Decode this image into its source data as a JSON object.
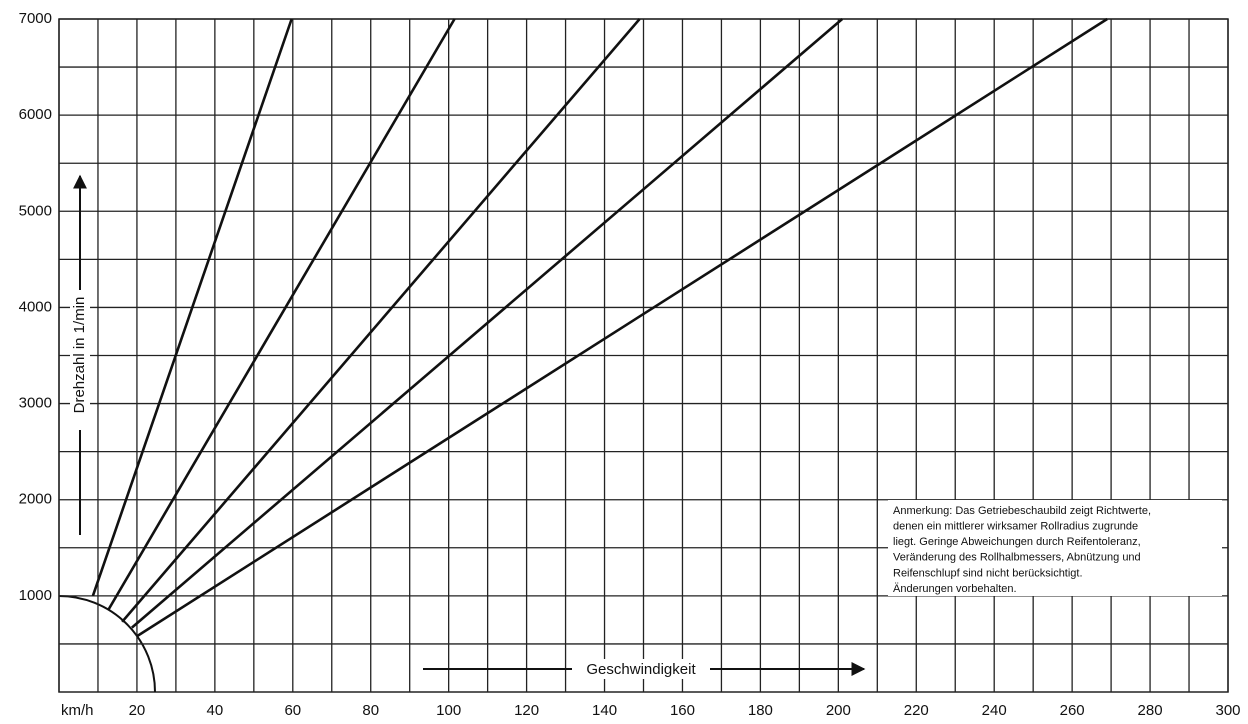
{
  "chart_data": {
    "type": "line",
    "x_label": "Geschwindigkeit",
    "y_label": "Drehzahl in 1/min",
    "xlim": [
      0,
      300
    ],
    "ylim": [
      0,
      7000
    ],
    "xticks": [
      {
        "value": 0,
        "label": "km/h"
      },
      20,
      40,
      60,
      80,
      100,
      120,
      140,
      160,
      180,
      200,
      220,
      240,
      260,
      280,
      300
    ],
    "xgrid": [
      10,
      30,
      50,
      70,
      90,
      110,
      130,
      150,
      170,
      190,
      210,
      230,
      250,
      270,
      290
    ],
    "yticks": [
      1000,
      2000,
      3000,
      4000,
      5000,
      6000,
      7000
    ],
    "ygrid": [
      500,
      1500,
      2500,
      3500,
      4500,
      5500,
      6500
    ],
    "grid": true,
    "series": [
      {
        "color": "#111111",
        "x": [
          8.7,
          59.7
        ],
        "values": [
          1000,
          7000
        ]
      },
      {
        "color": "#111111",
        "x": [
          12.6,
          101.5
        ],
        "values": [
          850,
          7000
        ]
      },
      {
        "color": "#111111",
        "x": [
          16.2,
          149
        ],
        "values": [
          730,
          7000
        ]
      },
      {
        "color": "#111111",
        "x": [
          18.7,
          201
        ],
        "values": [
          670,
          7000
        ]
      },
      {
        "color": "#111111",
        "x": [
          20,
          269
        ],
        "values": [
          580,
          7000
        ]
      }
    ],
    "annotation": [
      "Anmerkung: Das Getriebeschaubild zeigt Richtwerte,",
      "denen ein mittlerer wirksamer Rollradius zugrunde",
      "liegt. Geringe Abweichungen durch Reifentoleranz,",
      "Veränderung des Rollhalbmessers, Abnützung und",
      "Reifenschlupf sind nicht berücksichtigt.",
      "Änderungen vorbehalten."
    ]
  }
}
